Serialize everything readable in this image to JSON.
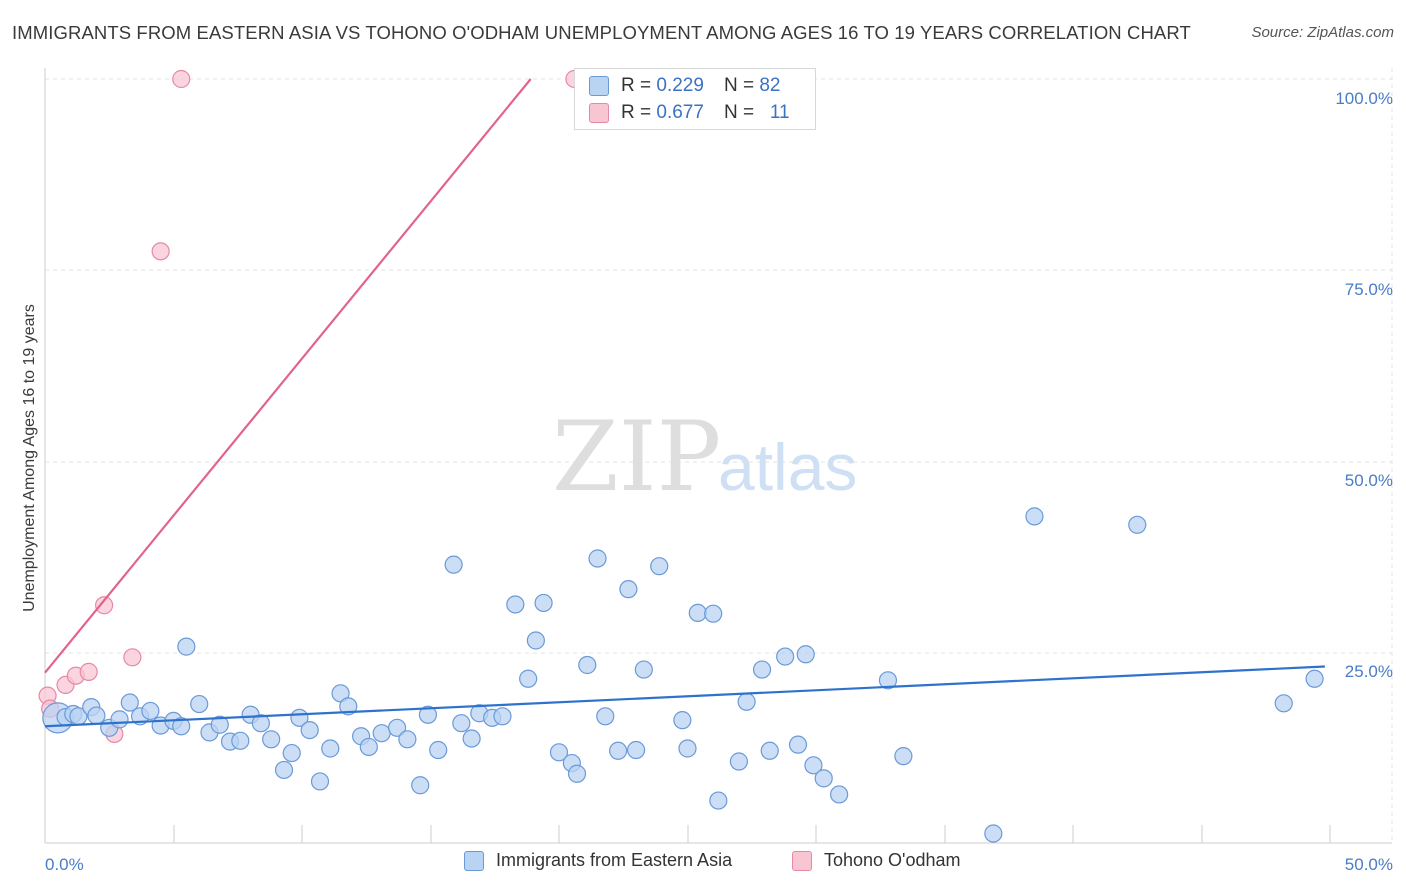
{
  "header": {
    "title": "IMMIGRANTS FROM EASTERN ASIA VS TOHONO O'ODHAM UNEMPLOYMENT AMONG AGES 16 TO 19 YEARS CORRELATION CHART",
    "source": "Source: ZipAtlas.com"
  },
  "watermark": {
    "zip": "ZIP",
    "atlas": "atlas"
  },
  "legend_top": {
    "rows": [
      {
        "r_label": "R =",
        "r_value": "0.229",
        "n_label": "N =",
        "n_value": "82"
      },
      {
        "r_label": "R =",
        "r_value": "0.677",
        "n_label": "N =",
        "n_value": "11"
      }
    ]
  },
  "legend_bottom": {
    "items": [
      {
        "label": "Immigrants from Eastern Asia"
      },
      {
        "label": "Tohono O'odham"
      }
    ]
  },
  "colors": {
    "blue_fill": "#b9d3f2",
    "blue_stroke": "#6a9ad8",
    "blue_line": "#2f72cc",
    "pink_fill": "#f8c6d3",
    "pink_stroke": "#e58aa6",
    "pink_line": "#e2648c",
    "grid": "#e3e3e3",
    "tick_text": "#4a7cc7"
  },
  "chart_data": {
    "type": "scatter",
    "title": "IMMIGRANTS FROM EASTERN ASIA VS TOHONO O'ODHAM UNEMPLOYMENT AMONG AGES 16 TO 19 YEARS CORRELATION CHART",
    "xlabel": "",
    "ylabel": "Unemployment Among Ages 16 to 19 years",
    "xlim": [
      0,
      50
    ],
    "ylim": [
      0,
      100
    ],
    "x_tick_labels": [
      "0.0%",
      "50.0%"
    ],
    "y_tick_labels": [
      "100.0%",
      "75.0%",
      "50.0%",
      "25.0%"
    ],
    "y_tick_values": [
      100,
      75,
      50,
      25
    ],
    "series": [
      {
        "name": "Immigrants from Eastern Asia",
        "color": "#6a9ad8",
        "r": 0.229,
        "n": 82,
        "trend": {
          "x": [
            0,
            49.8
          ],
          "y": [
            15.5,
            23.3
          ]
        },
        "points": [
          {
            "x": 0.5,
            "y": 16.6,
            "big": true
          },
          {
            "x": 0.8,
            "y": 16.7
          },
          {
            "x": 1.1,
            "y": 17.1
          },
          {
            "x": 1.3,
            "y": 16.8
          },
          {
            "x": 1.8,
            "y": 18.0
          },
          {
            "x": 2.0,
            "y": 16.9
          },
          {
            "x": 2.5,
            "y": 15.3
          },
          {
            "x": 2.9,
            "y": 16.4
          },
          {
            "x": 3.3,
            "y": 18.6
          },
          {
            "x": 3.7,
            "y": 16.8
          },
          {
            "x": 4.1,
            "y": 17.5
          },
          {
            "x": 4.5,
            "y": 15.6
          },
          {
            "x": 5.0,
            "y": 16.2
          },
          {
            "x": 5.3,
            "y": 15.5
          },
          {
            "x": 5.5,
            "y": 25.9
          },
          {
            "x": 6.0,
            "y": 18.4
          },
          {
            "x": 6.4,
            "y": 14.7
          },
          {
            "x": 6.8,
            "y": 15.7
          },
          {
            "x": 7.2,
            "y": 13.5
          },
          {
            "x": 7.6,
            "y": 13.6
          },
          {
            "x": 8.0,
            "y": 17.0
          },
          {
            "x": 8.4,
            "y": 15.9
          },
          {
            "x": 8.8,
            "y": 13.8
          },
          {
            "x": 9.3,
            "y": 9.8
          },
          {
            "x": 9.6,
            "y": 12.0
          },
          {
            "x": 9.9,
            "y": 16.6
          },
          {
            "x": 10.3,
            "y": 15.0
          },
          {
            "x": 10.7,
            "y": 8.3
          },
          {
            "x": 11.1,
            "y": 12.6
          },
          {
            "x": 11.5,
            "y": 19.8
          },
          {
            "x": 11.8,
            "y": 18.1
          },
          {
            "x": 12.3,
            "y": 14.2
          },
          {
            "x": 12.6,
            "y": 12.8
          },
          {
            "x": 13.1,
            "y": 14.6
          },
          {
            "x": 13.7,
            "y": 15.3
          },
          {
            "x": 14.1,
            "y": 13.8
          },
          {
            "x": 14.6,
            "y": 7.8
          },
          {
            "x": 14.9,
            "y": 17.0
          },
          {
            "x": 15.3,
            "y": 12.4
          },
          {
            "x": 15.9,
            "y": 36.6
          },
          {
            "x": 16.2,
            "y": 15.9
          },
          {
            "x": 16.6,
            "y": 13.9
          },
          {
            "x": 16.9,
            "y": 17.2
          },
          {
            "x": 17.4,
            "y": 16.6
          },
          {
            "x": 17.8,
            "y": 16.8
          },
          {
            "x": 18.3,
            "y": 31.4
          },
          {
            "x": 18.8,
            "y": 21.7
          },
          {
            "x": 19.1,
            "y": 26.7
          },
          {
            "x": 19.4,
            "y": 31.6
          },
          {
            "x": 20.0,
            "y": 12.1
          },
          {
            "x": 20.5,
            "y": 10.7
          },
          {
            "x": 20.7,
            "y": 9.3
          },
          {
            "x": 21.1,
            "y": 23.5
          },
          {
            "x": 21.5,
            "y": 37.4
          },
          {
            "x": 21.8,
            "y": 16.8
          },
          {
            "x": 22.3,
            "y": 12.3
          },
          {
            "x": 22.7,
            "y": 33.4
          },
          {
            "x": 23.0,
            "y": 12.4
          },
          {
            "x": 23.3,
            "y": 22.9
          },
          {
            "x": 23.9,
            "y": 36.4
          },
          {
            "x": 24.8,
            "y": 16.3
          },
          {
            "x": 25.0,
            "y": 12.6
          },
          {
            "x": 25.4,
            "y": 30.3
          },
          {
            "x": 26.0,
            "y": 30.2
          },
          {
            "x": 26.2,
            "y": 5.8
          },
          {
            "x": 27.3,
            "y": 18.7
          },
          {
            "x": 27.9,
            "y": 22.9
          },
          {
            "x": 28.2,
            "y": 12.3
          },
          {
            "x": 28.8,
            "y": 24.6
          },
          {
            "x": 29.3,
            "y": 13.1
          },
          {
            "x": 29.6,
            "y": 24.9
          },
          {
            "x": 29.9,
            "y": 10.4
          },
          {
            "x": 30.3,
            "y": 8.7
          },
          {
            "x": 30.9,
            "y": 6.6
          },
          {
            "x": 32.8,
            "y": 21.5
          },
          {
            "x": 33.4,
            "y": 11.6
          },
          {
            "x": 36.9,
            "y": 1.5
          },
          {
            "x": 38.5,
            "y": 42.9
          },
          {
            "x": 42.5,
            "y": 41.8
          },
          {
            "x": 48.2,
            "y": 18.5
          },
          {
            "x": 49.4,
            "y": 21.7
          },
          {
            "x": 27.0,
            "y": 10.9
          }
        ]
      },
      {
        "name": "Tohono O'odham",
        "color": "#e58aa6",
        "r": 0.677,
        "n": 11,
        "trend": {
          "x": [
            0,
            18.9
          ],
          "y": [
            22.5,
            100
          ]
        },
        "points": [
          {
            "x": 0.1,
            "y": 19.5
          },
          {
            "x": 0.2,
            "y": 17.8
          },
          {
            "x": 0.8,
            "y": 20.9
          },
          {
            "x": 1.2,
            "y": 22.1
          },
          {
            "x": 1.7,
            "y": 22.6
          },
          {
            "x": 2.3,
            "y": 31.3
          },
          {
            "x": 2.7,
            "y": 14.5
          },
          {
            "x": 3.4,
            "y": 24.5
          },
          {
            "x": 4.5,
            "y": 77.5
          },
          {
            "x": 5.3,
            "y": 100
          },
          {
            "x": 20.6,
            "y": 100
          }
        ]
      }
    ]
  }
}
